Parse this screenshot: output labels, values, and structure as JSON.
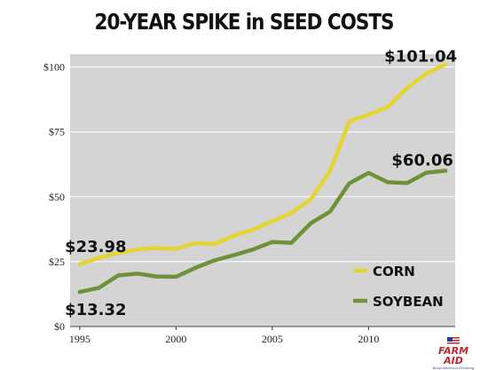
{
  "chart_data": {
    "type": "line",
    "title": "20-YEAR SPIKE in SEED COSTS",
    "x": [
      1995,
      1996,
      1997,
      1998,
      1999,
      2000,
      2001,
      2002,
      2003,
      2004,
      2005,
      2006,
      2007,
      2008,
      2009,
      2010,
      2011,
      2012,
      2013,
      2014
    ],
    "series": [
      {
        "name": "CORN",
        "color": "#e4d533",
        "values": [
          23.98,
          26.5,
          28.3,
          29.8,
          30.3,
          29.9,
          32.2,
          31.8,
          35.0,
          37.3,
          40.6,
          43.8,
          49.0,
          60.0,
          79.0,
          81.7,
          84.6,
          92.0,
          97.5,
          101.04
        ]
      },
      {
        "name": "SOYBEAN",
        "color": "#6f913a",
        "values": [
          13.32,
          14.9,
          19.7,
          20.4,
          19.3,
          19.2,
          22.6,
          25.5,
          27.5,
          29.7,
          32.6,
          32.3,
          39.8,
          44.3,
          55.2,
          59.2,
          55.6,
          55.3,
          59.3,
          60.06
        ]
      }
    ],
    "annotations": [
      "$23.98",
      "$13.32",
      "$101.04",
      "$60.06"
    ],
    "y_ticks": [
      "$0",
      "$25",
      "$50",
      "$75",
      "$100"
    ],
    "x_ticks": [
      "1995",
      "2000",
      "2005",
      "2010"
    ],
    "xlim": [
      1994.5,
      2014.5
    ],
    "ylim": [
      0,
      105
    ],
    "grid": true,
    "legend_position": "bottom-right",
    "plot_background": "#d4d4d4",
    "grid_color": "#ffffff"
  },
  "logo": {
    "text": "FARM AID",
    "tagline": "Keep America Growing"
  }
}
